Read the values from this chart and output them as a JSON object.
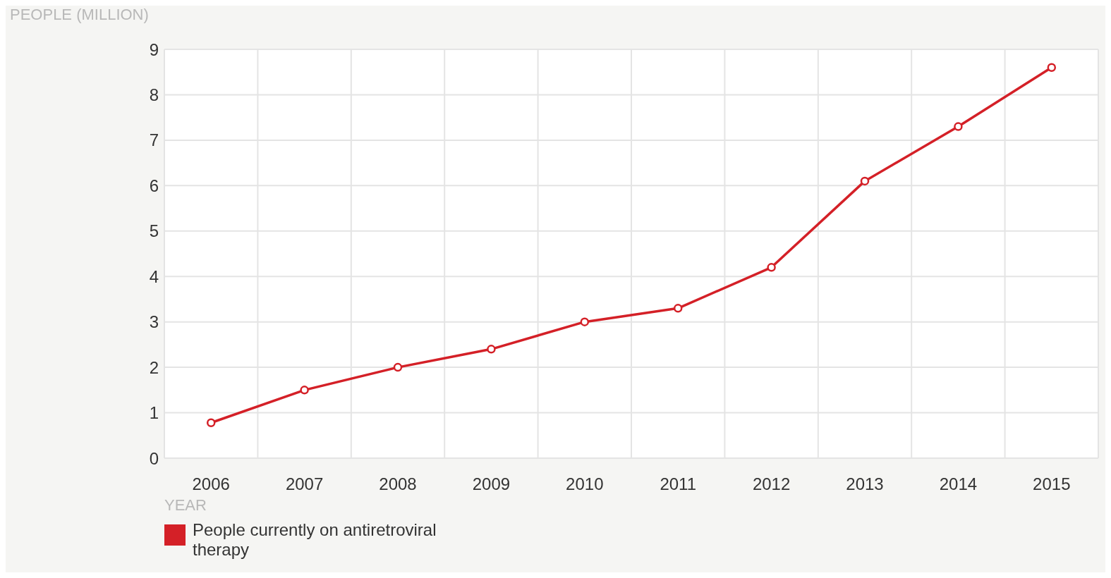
{
  "chart_data": {
    "type": "line",
    "ylabel": "PEOPLE (MILLION)",
    "xlabel": "YEAR",
    "categories": [
      "2006",
      "2007",
      "2008",
      "2009",
      "2010",
      "2011",
      "2012",
      "2013",
      "2014",
      "2015"
    ],
    "series": [
      {
        "name": "People currently on antiretroviral therapy",
        "color": "#d42027",
        "values": [
          0.78,
          1.5,
          2.0,
          2.4,
          3.0,
          3.3,
          4.2,
          6.1,
          7.3,
          8.6
        ]
      }
    ],
    "ylim": [
      0,
      9
    ],
    "yticks": [
      0,
      1,
      2,
      3,
      4,
      5,
      6,
      7,
      8,
      9
    ],
    "grid": true,
    "legend": "bottom left",
    "marker": "circle",
    "line_style": "solid"
  }
}
